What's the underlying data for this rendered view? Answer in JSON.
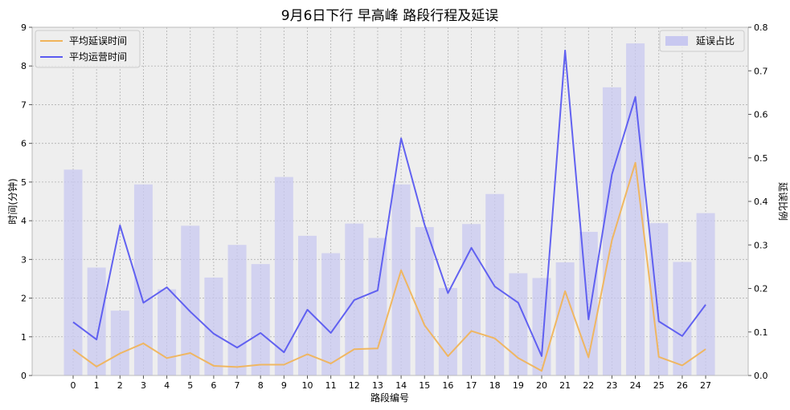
{
  "chart_data": {
    "type": "bar+line",
    "title": "9月6日下行 早高峰 路段行程及延误",
    "xlabel": "路段编号",
    "ylabel_left": "时间(分钟)",
    "ylabel_right": "延误比例",
    "ylim_left": [
      0,
      9
    ],
    "ylim_right": [
      0,
      0.8
    ],
    "yticks_left": [
      "0",
      "1",
      "2",
      "3",
      "4",
      "5",
      "6",
      "7",
      "8",
      "9"
    ],
    "yticks_right": [
      "0.0",
      "0.1",
      "0.2",
      "0.3",
      "0.4",
      "0.5",
      "0.6",
      "0.7",
      "0.8"
    ],
    "grid": true,
    "categories": [
      "0",
      "1",
      "2",
      "3",
      "4",
      "5",
      "6",
      "7",
      "8",
      "9",
      "10",
      "11",
      "12",
      "13",
      "14",
      "15",
      "16",
      "17",
      "18",
      "19",
      "20",
      "21",
      "22",
      "23",
      "24",
      "25",
      "26",
      "27"
    ],
    "bars": {
      "name": "延误占比",
      "axis": "right",
      "color": "#c8c8f0",
      "legend": "top-right",
      "values": [
        0.473,
        0.248,
        0.149,
        0.439,
        0.198,
        0.344,
        0.225,
        0.3,
        0.256,
        0.456,
        0.321,
        0.281,
        0.349,
        0.316,
        0.439,
        0.341,
        0.201,
        0.348,
        0.417,
        0.235,
        0.224,
        0.26,
        0.33,
        0.662,
        0.763,
        0.35,
        0.261,
        0.373
      ]
    },
    "series": [
      {
        "name": "平均延误时间",
        "axis": "left",
        "color": "#f0b45a",
        "values": [
          0.67,
          0.23,
          0.57,
          0.83,
          0.45,
          0.58,
          0.25,
          0.22,
          0.28,
          0.28,
          0.55,
          0.31,
          0.68,
          0.7,
          2.72,
          1.3,
          0.5,
          1.15,
          0.96,
          0.45,
          0.12,
          2.18,
          0.47,
          3.5,
          5.5,
          0.48,
          0.26,
          0.68
        ]
      },
      {
        "name": "平均运营时间",
        "axis": "left",
        "color": "#5a5af0",
        "values": [
          1.38,
          0.93,
          3.88,
          1.88,
          2.28,
          1.65,
          1.08,
          0.72,
          1.1,
          0.6,
          1.7,
          1.1,
          1.95,
          2.2,
          6.13,
          3.9,
          2.13,
          3.3,
          2.3,
          1.88,
          0.5,
          8.4,
          1.45,
          5.2,
          7.2,
          1.4,
          1.02,
          1.83
        ]
      }
    ],
    "line_legend": "top-left"
  }
}
